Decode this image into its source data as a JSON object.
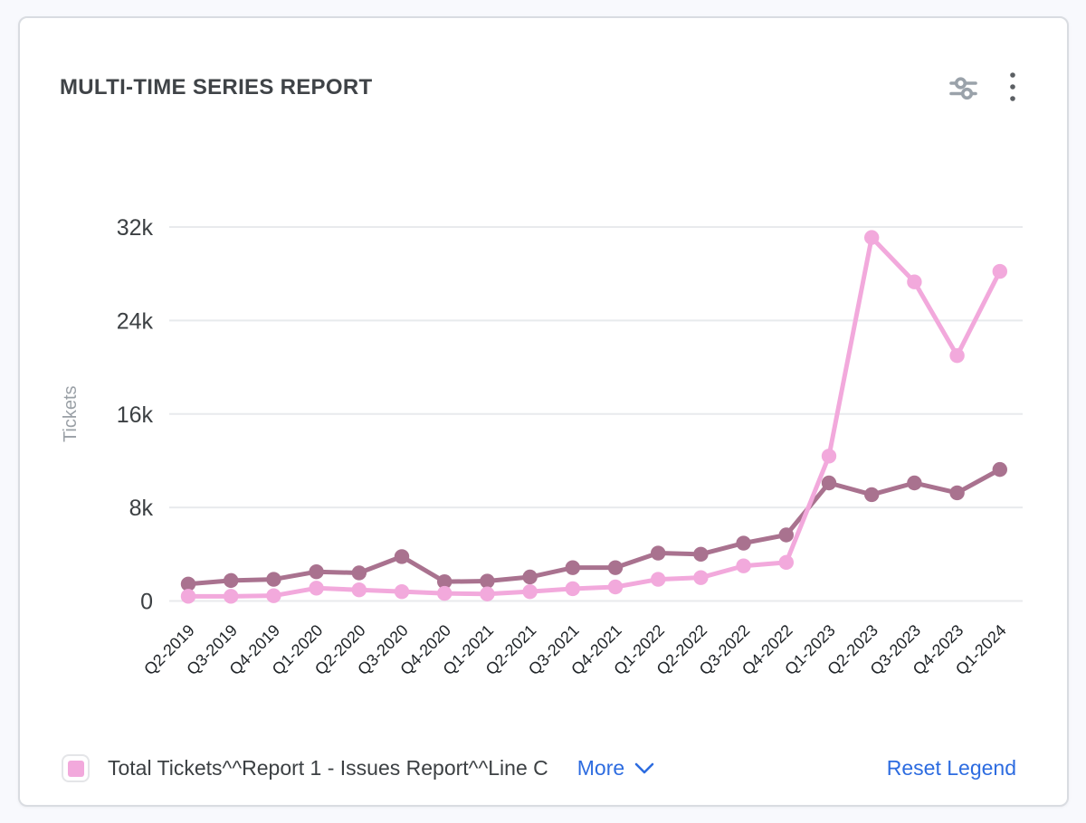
{
  "header": {
    "title": "MULTI-TIME SERIES REPORT"
  },
  "toolbar": {
    "icons": [
      "sliders-icon",
      "kebab-menu-icon"
    ]
  },
  "legend": {
    "items": [
      {
        "label": "Total Tickets^^Report 1 - Issues Report^^Line C",
        "color": "#f2a9dc"
      }
    ],
    "more_label": "More",
    "reset_label": "Reset Legend",
    "link_color": "#2d6ce0"
  },
  "chart_data": {
    "type": "line",
    "title": "MULTI-TIME SERIES REPORT",
    "xlabel": "",
    "ylabel": "Tickets",
    "ylim": [
      0,
      32000
    ],
    "yticks": [
      0,
      8000,
      16000,
      24000,
      32000
    ],
    "ytick_labels": [
      "0",
      "8k",
      "16k",
      "24k",
      "32k"
    ],
    "grid": true,
    "legend_position": "bottom",
    "categories": [
      "Q2-2019",
      "Q3-2019",
      "Q4-2019",
      "Q1-2020",
      "Q2-2020",
      "Q3-2020",
      "Q4-2020",
      "Q1-2021",
      "Q2-2021",
      "Q3-2021",
      "Q4-2021",
      "Q1-2022",
      "Q2-2022",
      "Q3-2022",
      "Q4-2022",
      "Q1-2023",
      "Q2-2023",
      "Q3-2023",
      "Q4-2023",
      "Q1-2024"
    ],
    "series": [
      {
        "name": "Total Tickets^^Report 1 - Issues Report^^Line C",
        "color": "#f2a9dc",
        "values": [
          400,
          400,
          450,
          1100,
          950,
          800,
          650,
          600,
          800,
          1050,
          1200,
          1850,
          2000,
          3000,
          3300,
          12400,
          31100,
          27300,
          21000,
          28200
        ]
      },
      {
        "name": "",
        "color": "#a9728f",
        "values": [
          1450,
          1750,
          1850,
          2500,
          2400,
          3800,
          1650,
          1700,
          2050,
          2850,
          2850,
          4100,
          4000,
          4950,
          5650,
          10100,
          9100,
          10100,
          9250,
          11250
        ]
      }
    ]
  }
}
